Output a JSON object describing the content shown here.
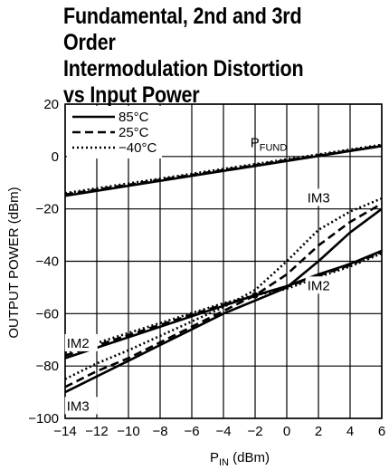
{
  "chart_data": {
    "type": "line",
    "title_lines": [
      "Fundamental, 2nd and 3rd Order",
      "Intermodulation Distortion",
      "vs Input Power"
    ],
    "xlabel_main": "P",
    "xlabel_sub": "IN",
    "xlabel_unit": " (dBm)",
    "ylabel": "OUTPUT POWER (dBm)",
    "xlim": [
      -14,
      6
    ],
    "ylim": [
      -100,
      20
    ],
    "xticks": [
      -14,
      -12,
      -10,
      -8,
      -6,
      -4,
      -2,
      0,
      2,
      4,
      6
    ],
    "yticks": [
      -100,
      -80,
      -60,
      -40,
      -20,
      0,
      20
    ],
    "xtick_labels": [
      "−14",
      "−12",
      "−10",
      "−8",
      "−6",
      "−4",
      "−2",
      "0",
      "2",
      "4",
      "6"
    ],
    "ytick_labels": [
      "−100",
      "−80",
      "−60",
      "−40",
      "−20",
      "0",
      "20"
    ],
    "grid": true,
    "legend": {
      "placement": "top-left",
      "entries": [
        {
          "label": "85°C",
          "style": "solid"
        },
        {
          "label": "25°C",
          "style": "dashed"
        },
        {
          "label": "−40°C",
          "style": "dotted"
        }
      ]
    },
    "annotations": [
      {
        "text": "P",
        "sub": "FUND",
        "x": -2.3,
        "y": 3.5
      },
      {
        "text": "IM3",
        "x": 1.3,
        "y": -17.5
      },
      {
        "text": "IM2",
        "x": 1.3,
        "y": -51
      },
      {
        "text": "IM2",
        "x": -13.9,
        "y": -73
      },
      {
        "text": "IM3",
        "x": -13.9,
        "y": -97
      }
    ],
    "series": [
      {
        "name": "85°C",
        "curve": "PFUND",
        "style": "solid",
        "x": [
          -14,
          6
        ],
        "y": [
          -15,
          4
        ]
      },
      {
        "name": "25°C",
        "curve": "PFUND",
        "style": "dashed",
        "x": [
          -14,
          6
        ],
        "y": [
          -14.5,
          4.2
        ]
      },
      {
        "name": "−40°C",
        "curve": "PFUND",
        "style": "dotted",
        "x": [
          -14,
          6
        ],
        "y": [
          -14,
          4.5
        ]
      },
      {
        "name": "85°C",
        "curve": "IM2",
        "style": "solid",
        "x": [
          -14,
          -4,
          -2,
          0,
          2,
          4,
          6
        ],
        "y": [
          -77,
          -57,
          -53,
          -49.5,
          -45,
          -41,
          -36
        ]
      },
      {
        "name": "25°C",
        "curve": "IM2",
        "style": "dashed",
        "x": [
          -14,
          -4,
          -2,
          0,
          2,
          4,
          6
        ],
        "y": [
          -76,
          -56.5,
          -53,
          -49.8,
          -45.5,
          -41.5,
          -36.5
        ]
      },
      {
        "name": "−40°C",
        "curve": "IM2",
        "style": "dotted",
        "x": [
          -14,
          -4,
          -2,
          0,
          2,
          4,
          6
        ],
        "y": [
          -75,
          -56,
          -53,
          -50.5,
          -46,
          -42,
          -37
        ]
      },
      {
        "name": "85°C",
        "curve": "IM3",
        "style": "solid",
        "x": [
          -14,
          -12,
          -10,
          -8,
          -6,
          -4,
          -2,
          0,
          2,
          4,
          6
        ],
        "y": [
          -90,
          -84,
          -78,
          -72,
          -66,
          -60,
          -55,
          -50,
          -40,
          -29,
          -20
        ]
      },
      {
        "name": "25°C",
        "curve": "IM3",
        "style": "dashed",
        "x": [
          -14,
          -12,
          -10,
          -8,
          -6,
          -4,
          -2,
          0,
          2,
          4,
          6
        ],
        "y": [
          -88,
          -82,
          -77,
          -71,
          -65,
          -59,
          -53,
          -45,
          -34,
          -25,
          -18
        ]
      },
      {
        "name": "−40°C",
        "curve": "IM3",
        "style": "dotted",
        "x": [
          -14,
          -12,
          -10,
          -8,
          -6,
          -4,
          -2,
          0,
          2,
          4,
          6
        ],
        "y": [
          -85,
          -79,
          -74,
          -68.5,
          -63,
          -57.5,
          -51,
          -40,
          -28,
          -21,
          -16
        ]
      }
    ]
  }
}
